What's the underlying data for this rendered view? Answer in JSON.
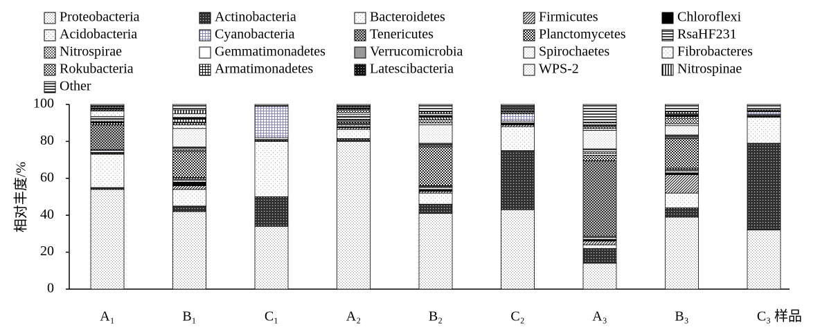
{
  "chart_data": {
    "type": "stacked_bar",
    "xlabel": "样品",
    "ylabel": "相对丰度/%",
    "categories": [
      "A₁",
      "B₁",
      "C₁",
      "A₂",
      "B₂",
      "C₂",
      "A₃",
      "B₃",
      "C₃"
    ],
    "ylim": [
      0,
      100
    ],
    "yticks": [
      0,
      20,
      40,
      60,
      80,
      100
    ],
    "series": [
      {
        "name": "Proteobacteria",
        "color": "#888888",
        "pattern": "dots",
        "values": [
          54,
          42,
          34,
          80,
          41,
          43,
          14,
          39,
          32
        ]
      },
      {
        "name": "Actinobacteria",
        "color": "#333333",
        "pattern": "dense",
        "values": [
          1,
          3,
          16,
          1.5,
          5,
          32,
          8,
          5,
          47
        ]
      },
      {
        "name": "Bacteroidetes",
        "color": "#aaaaaa",
        "pattern": "sparse",
        "values": [
          18,
          9,
          30,
          5,
          6,
          13,
          2,
          8,
          14
        ]
      },
      {
        "name": "Firmicutes",
        "color": "#000000",
        "pattern": "diag",
        "values": [
          0.5,
          2,
          0.5,
          1,
          1,
          1,
          2,
          10,
          0.5
        ]
      },
      {
        "name": "Chloroflexi",
        "color": "#000000",
        "pattern": "solid",
        "values": [
          0.5,
          2,
          0.5,
          0.5,
          1,
          1,
          1,
          1,
          0.5
        ]
      },
      {
        "name": "Acidobacteria",
        "color": "#777777",
        "pattern": "sparse",
        "values": [
          1,
          1,
          1,
          1,
          1,
          1,
          1,
          1,
          0.5
        ]
      },
      {
        "name": "Cyanobacteria",
        "color": "#8888b8",
        "pattern": "grid",
        "values": [
          0.5,
          0.5,
          17,
          0.5,
          0.5,
          4,
          0.5,
          0.5,
          1.5
        ]
      },
      {
        "name": "Tenericutes",
        "color": "#222222",
        "pattern": "cross",
        "values": [
          13.5,
          1,
          0,
          0.5,
          0.5,
          1,
          41,
          1,
          0.5
        ]
      },
      {
        "name": "Planctomycetes",
        "color": "#222222",
        "pattern": "check",
        "values": [
          1,
          14,
          0,
          1,
          21,
          0.5,
          3,
          16,
          0.5
        ]
      },
      {
        "name": "RsaHF231",
        "color": "#000000",
        "pattern": "hline",
        "values": [
          0.5,
          0.5,
          0,
          0.5,
          0.5,
          0.5,
          1,
          0.5,
          0
        ]
      },
      {
        "name": "Nitrospirae",
        "color": "#666666",
        "pattern": "check",
        "values": [
          0.5,
          1,
          0,
          0.5,
          0.5,
          0.5,
          1,
          0.5,
          0
        ]
      },
      {
        "name": "Gemmatimonadetes",
        "color": "#ffffff",
        "pattern": "solid",
        "values": [
          1,
          0.5,
          0,
          1,
          0.5,
          0.5,
          1,
          0.5,
          0
        ]
      },
      {
        "name": "Verrucomicrobia",
        "color": "#999999",
        "pattern": "solid",
        "values": [
          0.5,
          0.5,
          0,
          0.5,
          0.5,
          0.5,
          0.5,
          0.5,
          0
        ]
      },
      {
        "name": "Spirochaetes",
        "color": "#bbbbbb",
        "pattern": "dots",
        "values": [
          1,
          10,
          0,
          1,
          10,
          0.5,
          10,
          5,
          0
        ]
      },
      {
        "name": "Fibrobacteres",
        "color": "#999999",
        "pattern": "sparse",
        "values": [
          3,
          2,
          0,
          1,
          1,
          0,
          1,
          1,
          0
        ]
      },
      {
        "name": "Rokubacteria",
        "color": "#444444",
        "pattern": "check",
        "values": [
          0.5,
          1,
          0,
          1.5,
          2,
          0,
          1,
          3,
          0
        ]
      },
      {
        "name": "Armatimonadetes",
        "color": "#000000",
        "pattern": "grid",
        "values": [
          0.5,
          2,
          0,
          0.5,
          1,
          0,
          0.5,
          1,
          0
        ]
      },
      {
        "name": "Latescibacteria",
        "color": "#111111",
        "pattern": "dense",
        "values": [
          0.5,
          1,
          0,
          0.5,
          1,
          0,
          0.5,
          1,
          0
        ]
      },
      {
        "name": "WPS-2",
        "color": "#aaaaaa",
        "pattern": "dots",
        "values": [
          0.5,
          2,
          0,
          0.5,
          1,
          0,
          1,
          0.5,
          0
        ]
      },
      {
        "name": "Nitrospinae",
        "color": "#000000",
        "pattern": "vline",
        "values": [
          0.5,
          2,
          0,
          0.5,
          1,
          0,
          0.5,
          1,
          0
        ]
      },
      {
        "name": "Other",
        "color": "#000000",
        "pattern": "hline",
        "values": [
          1,
          3,
          1,
          1,
          4,
          1,
          9.5,
          4,
          3
        ]
      }
    ]
  }
}
